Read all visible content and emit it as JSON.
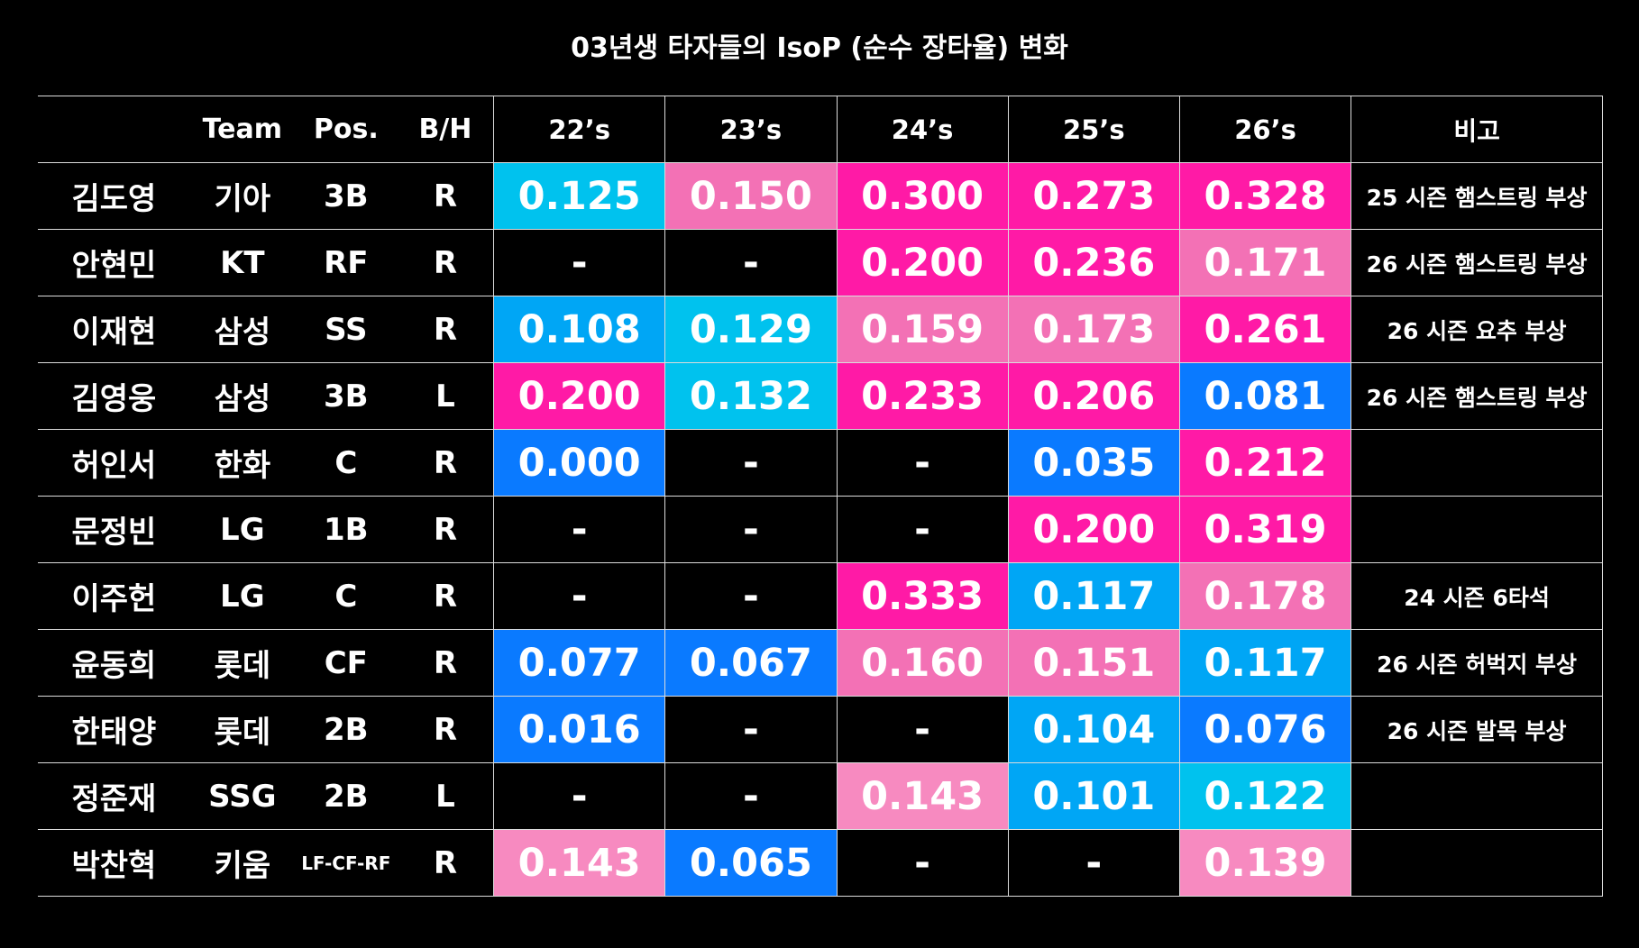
{
  "chart_data": {
    "type": "table",
    "title": "03년생 타자들의 IsoP (순수 장타율) 변화",
    "columns": [
      "",
      "Team",
      "Pos.",
      "B/H",
      "22’s",
      "23’s",
      "24’s",
      "25’s",
      "26’s",
      "비고"
    ],
    "seasons": [
      "22’s",
      "23’s",
      "24’s",
      "25’s",
      "26’s"
    ],
    "rows": [
      {
        "name": "김도영",
        "team": "기아",
        "pos": "3B",
        "bh": "R",
        "values": [
          "0.125",
          "0.150",
          "0.300",
          "0.273",
          "0.328"
        ],
        "colors": [
          "#00c2ee",
          "#f371b5",
          "#ff1aa6",
          "#ff1aa6",
          "#ff1aa6"
        ],
        "note": "25 시즌 햄스트링 부상"
      },
      {
        "name": "안현민",
        "team": "KT",
        "pos": "RF",
        "bh": "R",
        "values": [
          "-",
          "-",
          "0.200",
          "0.236",
          "0.171"
        ],
        "colors": [
          "#000000",
          "#000000",
          "#ff1aa6",
          "#ff1aa6",
          "#f371b5"
        ],
        "note": "26 시즌 햄스트링 부상"
      },
      {
        "name": "이재현",
        "team": "삼성",
        "pos": "SS",
        "bh": "R",
        "values": [
          "0.108",
          "0.129",
          "0.159",
          "0.173",
          "0.261"
        ],
        "colors": [
          "#00a6f5",
          "#00c2ee",
          "#f371b5",
          "#f371b5",
          "#ff1aa6"
        ],
        "note": "26 시즌 요추 부상"
      },
      {
        "name": "김영웅",
        "team": "삼성",
        "pos": "3B",
        "bh": "L",
        "values": [
          "0.200",
          "0.132",
          "0.233",
          "0.206",
          "0.081"
        ],
        "colors": [
          "#ff1aa6",
          "#00c2ee",
          "#ff1aa6",
          "#ff1aa6",
          "#0a7aff"
        ],
        "note": "26 시즌 햄스트링 부상"
      },
      {
        "name": "허인서",
        "team": "한화",
        "pos": "C",
        "bh": "R",
        "values": [
          "0.000",
          "-",
          "-",
          "0.035",
          "0.212"
        ],
        "colors": [
          "#0a7aff",
          "#000000",
          "#000000",
          "#0a7aff",
          "#ff1aa6"
        ],
        "note": ""
      },
      {
        "name": "문정빈",
        "team": "LG",
        "pos": "1B",
        "bh": "R",
        "values": [
          "-",
          "-",
          "-",
          "0.200",
          "0.319"
        ],
        "colors": [
          "#000000",
          "#000000",
          "#000000",
          "#ff1aa6",
          "#ff1aa6"
        ],
        "note": ""
      },
      {
        "name": "이주헌",
        "team": "LG",
        "pos": "C",
        "bh": "R",
        "values": [
          "-",
          "-",
          "0.333",
          "0.117",
          "0.178"
        ],
        "colors": [
          "#000000",
          "#000000",
          "#ff1aa6",
          "#00a6f5",
          "#f371b5"
        ],
        "note": "24 시즌 6타석"
      },
      {
        "name": "윤동희",
        "team": "롯데",
        "pos": "CF",
        "bh": "R",
        "values": [
          "0.077",
          "0.067",
          "0.160",
          "0.151",
          "0.117"
        ],
        "colors": [
          "#0a7aff",
          "#0a7aff",
          "#f371b5",
          "#f371b5",
          "#00a6f5"
        ],
        "note": "26 시즌 허벅지 부상"
      },
      {
        "name": "한태양",
        "team": "롯데",
        "pos": "2B",
        "bh": "R",
        "values": [
          "0.016",
          "-",
          "-",
          "0.104",
          "0.076"
        ],
        "colors": [
          "#0a7aff",
          "#000000",
          "#000000",
          "#00a6f5",
          "#0a7aff"
        ],
        "note": "26 시즌 발목 부상"
      },
      {
        "name": "정준재",
        "team": "SSG",
        "pos": "2B",
        "bh": "L",
        "values": [
          "-",
          "-",
          "0.143",
          "0.101",
          "0.122"
        ],
        "colors": [
          "#000000",
          "#000000",
          "#f78ac0",
          "#00a6f5",
          "#00c2ee"
        ],
        "note": ""
      },
      {
        "name": "박찬혁",
        "team": "키움",
        "pos": "LF-CF-RF",
        "bh": "R",
        "values": [
          "0.143",
          "0.065",
          "-",
          "-",
          "0.139"
        ],
        "colors": [
          "#f78ac0",
          "#0a7aff",
          "#000000",
          "#000000",
          "#f78ac0"
        ],
        "note": ""
      }
    ]
  }
}
